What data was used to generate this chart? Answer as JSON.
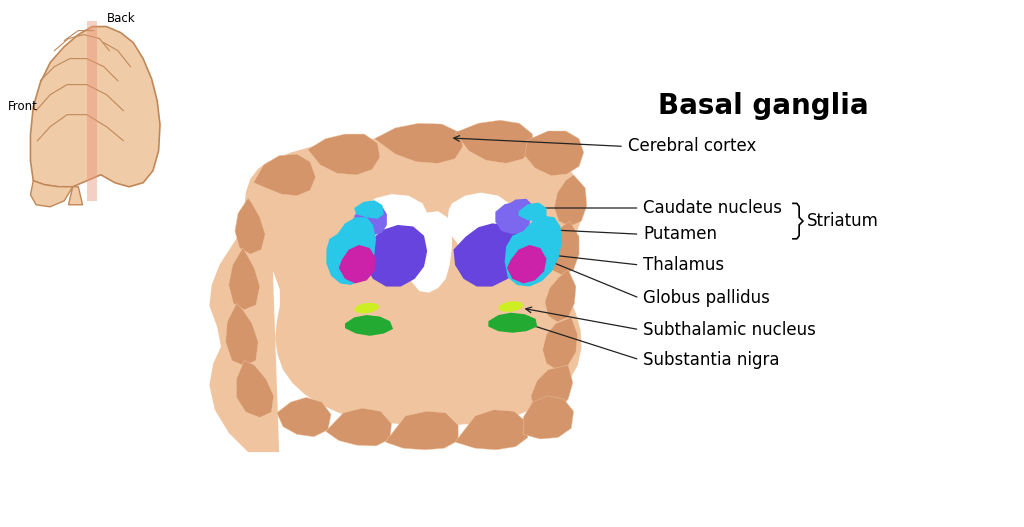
{
  "title": "Basal ganglia",
  "bg_color": "#ffffff",
  "brain_fill": "#D4956A",
  "brain_light": "#E8B090",
  "brain_lighter": "#EFC49E",
  "white_matter": "#ffffff",
  "caudate_color": "#7B68EE",
  "putamen_color": "#29C7E8",
  "globus_color": "#CC22AA",
  "thalamus_color": "#6644DD",
  "subthal_color": "#CCEE22",
  "substantia_color": "#22AA33",
  "line_color": "#222222",
  "text_color": "#111111",
  "labels": {
    "title": "Basal ganglia",
    "cerebral_cortex": "Cerebral cortex",
    "caudate_nucleus": "Caudate nucleus",
    "putamen": "Putamen",
    "thalamus": "Thalamus",
    "globus_pallidus": "Globus pallidus",
    "subthalamic_nucleus": "Subthalamic nucleus",
    "substantia_nigra": "Substantia nigra",
    "striatum": "Striatum",
    "front": "Front",
    "back": "Back"
  }
}
